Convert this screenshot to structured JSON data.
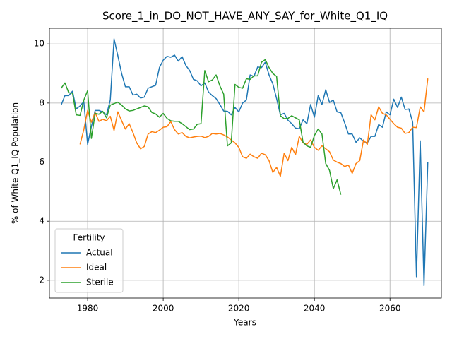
{
  "chart_data": {
    "type": "line",
    "title": "Score_1_in_DO_NOT_HAVE_ANY_SAY_for_White_Q1_IQ",
    "x_label": "Years",
    "y_label": "% of White Q1_IQ Population",
    "x": [
      1973,
      1974,
      1975,
      1976,
      1977,
      1978,
      1979,
      1980,
      1981,
      1982,
      1983,
      1984,
      1985,
      1986,
      1987,
      1988,
      1989,
      1990,
      1991,
      1992,
      1993,
      1994,
      1995,
      1996,
      1997,
      1998,
      1999,
      2000,
      2001,
      2002,
      2003,
      2004,
      2005,
      2006,
      2007,
      2008,
      2009,
      2010,
      2011,
      2012,
      2013,
      2014,
      2015,
      2016,
      2017,
      2018,
      2019,
      2020,
      2021,
      2022,
      2023,
      2024,
      2025,
      2026,
      2027,
      2028,
      2029,
      2030,
      2031,
      2032,
      2033,
      2034,
      2035,
      2036,
      2037,
      2038,
      2039,
      2040,
      2041,
      2042,
      2043,
      2044,
      2045,
      2046,
      2047,
      2048,
      2049,
      2050,
      2051,
      2052,
      2053,
      2054,
      2055,
      2056,
      2057,
      2058,
      2059,
      2060,
      2061,
      2062,
      2063,
      2064,
      2065,
      2066,
      2067,
      2068,
      2069,
      2070
    ],
    "series": [
      {
        "name": "Actual",
        "color": "#1f77b4",
        "values": [
          7.93,
          8.25,
          8.25,
          8.4,
          7.8,
          7.9,
          8.05,
          6.6,
          7.2,
          7.75,
          7.75,
          7.7,
          7.6,
          8.1,
          10.17,
          9.6,
          9.0,
          8.55,
          8.55,
          8.27,
          8.3,
          8.17,
          8.2,
          8.5,
          8.55,
          8.6,
          9.2,
          9.45,
          9.58,
          9.55,
          9.62,
          9.42,
          9.57,
          9.27,
          9.1,
          8.8,
          8.75,
          8.58,
          8.68,
          8.37,
          8.25,
          8.15,
          7.95,
          7.73,
          7.72,
          7.6,
          7.85,
          7.7,
          8.0,
          8.1,
          8.95,
          8.9,
          9.22,
          9.2,
          9.38,
          8.95,
          8.65,
          8.15,
          7.6,
          7.65,
          7.42,
          7.3,
          7.15,
          7.13,
          7.43,
          7.3,
          7.95,
          7.52,
          8.25,
          7.95,
          8.45,
          8.02,
          8.1,
          7.7,
          7.67,
          7.33,
          6.95,
          6.95,
          6.67,
          6.82,
          6.7,
          6.65,
          6.87,
          6.87,
          7.27,
          7.18,
          7.7,
          7.6,
          8.13,
          7.85,
          8.2,
          7.78,
          7.8,
          7.35,
          2.12,
          6.72,
          1.82,
          6.0
        ]
      },
      {
        "name": "Ideal",
        "color": "#ff7f0e",
        "values": [
          null,
          null,
          null,
          null,
          null,
          6.6,
          7.1,
          7.75,
          7.35,
          7.68,
          7.38,
          7.45,
          7.4,
          7.55,
          7.07,
          7.7,
          7.4,
          7.12,
          7.3,
          7.0,
          6.65,
          6.45,
          6.53,
          6.95,
          7.03,
          7.0,
          7.08,
          7.18,
          7.2,
          7.37,
          7.1,
          6.95,
          7.0,
          6.87,
          6.82,
          6.85,
          6.87,
          6.88,
          6.83,
          6.87,
          6.97,
          6.95,
          6.97,
          6.92,
          6.85,
          6.75,
          6.65,
          6.5,
          6.18,
          6.13,
          6.27,
          6.18,
          6.13,
          6.3,
          6.25,
          6.05,
          5.65,
          5.82,
          5.52,
          6.3,
          6.05,
          6.5,
          6.25,
          6.87,
          6.65,
          6.6,
          6.75,
          6.5,
          6.4,
          6.55,
          6.45,
          6.35,
          6.07,
          6.0,
          5.95,
          5.85,
          5.9,
          5.62,
          5.95,
          6.05,
          6.75,
          6.6,
          7.6,
          7.43,
          7.87,
          7.65,
          7.6,
          7.45,
          7.3,
          7.18,
          7.15,
          6.97,
          7.0,
          7.18,
          7.17,
          7.87,
          7.7,
          8.83
        ]
      },
      {
        "name": "Sterile",
        "color": "#2ca02c",
        "values": [
          8.5,
          8.68,
          8.35,
          8.33,
          7.6,
          7.58,
          8.1,
          8.42,
          6.8,
          7.65,
          7.62,
          7.72,
          7.5,
          7.93,
          7.98,
          8.03,
          7.93,
          7.8,
          7.73,
          7.75,
          7.8,
          7.85,
          7.9,
          7.87,
          7.68,
          7.63,
          7.52,
          7.65,
          7.48,
          7.4,
          7.38,
          7.38,
          7.3,
          7.2,
          7.1,
          7.12,
          7.28,
          7.3,
          9.1,
          8.72,
          8.78,
          8.95,
          8.58,
          8.3,
          6.55,
          6.65,
          8.63,
          8.53,
          8.5,
          8.82,
          8.8,
          8.92,
          8.92,
          9.38,
          9.47,
          9.2,
          9.0,
          8.9,
          7.57,
          7.47,
          7.48,
          7.57,
          7.5,
          7.43,
          6.67,
          6.55,
          6.5,
          6.9,
          7.12,
          6.95,
          5.95,
          5.72,
          5.1,
          5.4,
          4.9,
          null,
          null,
          null,
          null,
          null,
          null,
          null,
          null,
          null,
          null,
          null,
          null,
          null,
          null,
          null,
          null,
          null,
          null,
          null,
          null,
          null,
          null,
          null
        ]
      }
    ],
    "xlim": [
      1969.9,
      2073.6
    ],
    "xticks": [
      1980,
      2000,
      2020,
      2040,
      2060
    ],
    "ylim": [
      1.4,
      10.53
    ],
    "yticks": [
      2,
      4,
      6,
      8,
      10
    ],
    "grid": true,
    "legend_title": "Fertility",
    "legend_position": "lower left"
  }
}
